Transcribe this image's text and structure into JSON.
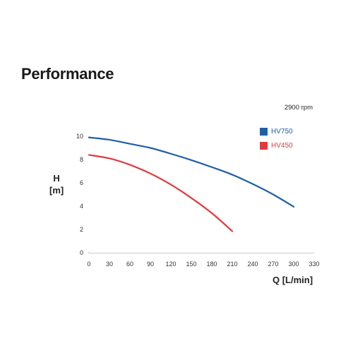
{
  "page": {
    "title": "Performance",
    "rpm_note": "2900 rpm"
  },
  "chart_data": {
    "type": "line",
    "title": "Performance",
    "xlabel": "Q [L/min]",
    "ylabel_line1": "H",
    "ylabel_line2": "[m]",
    "xlim": [
      0,
      330
    ],
    "ylim": [
      0,
      10
    ],
    "xticks": [
      0,
      30,
      60,
      90,
      120,
      150,
      180,
      210,
      240,
      270,
      300,
      330
    ],
    "yticks": [
      0,
      2,
      4,
      6,
      8,
      10
    ],
    "grid": false,
    "legend_position": "top-right",
    "series": [
      {
        "name": "HV750",
        "color": "#1f5fa6",
        "x": [
          0,
          30,
          60,
          90,
          120,
          150,
          180,
          210,
          240,
          270,
          300
        ],
        "y": [
          9.9,
          9.7,
          9.35,
          9.0,
          8.5,
          7.95,
          7.35,
          6.7,
          5.9,
          5.0,
          3.95
        ]
      },
      {
        "name": "HV450",
        "color": "#e03a3e",
        "x": [
          0,
          30,
          60,
          90,
          120,
          150,
          180,
          210
        ],
        "y": [
          8.4,
          8.1,
          7.55,
          6.8,
          5.85,
          4.7,
          3.4,
          1.85
        ]
      }
    ]
  }
}
